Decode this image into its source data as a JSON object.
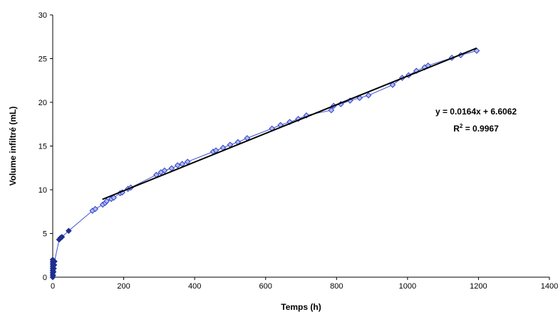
{
  "chart_data": {
    "type": "scatter",
    "xlabel": "Temps (h)",
    "ylabel": "Volume infiltré (mL)",
    "xlim": [
      0,
      1400
    ],
    "ylim": [
      0,
      30
    ],
    "x_ticks": [
      "0",
      "200",
      "400",
      "600",
      "800",
      "1000",
      "1200",
      "1400"
    ],
    "y_ticks": [
      "0",
      "5",
      "10",
      "15",
      "20",
      "25",
      "30"
    ],
    "grid": false,
    "colors": {
      "early_marker": "#1f2f8f",
      "marker_fill": "#aebcff",
      "marker_stroke": "#3040c0",
      "series_line": "#3f4fd0",
      "trendline": "#000000"
    },
    "series": [
      {
        "marker": "diamond",
        "connected": true,
        "x": [
          0,
          0,
          0,
          0,
          0,
          0,
          0,
          0,
          0,
          1,
          2,
          3,
          4,
          5,
          18,
          22,
          26,
          45,
          112,
          120,
          141,
          148,
          152,
          165,
          172,
          190,
          196,
          212,
          220,
          292,
          305,
          315,
          335,
          352,
          365,
          380,
          452,
          460,
          480,
          500,
          522,
          548,
          618,
          642,
          668,
          692,
          715,
          785,
          792,
          812,
          838,
          865,
          890,
          958,
          985,
          1003,
          1025,
          1048,
          1058,
          1125,
          1150,
          1195
        ],
        "y": [
          0,
          0.25,
          0.5,
          0.75,
          1.0,
          1.25,
          1.5,
          1.75,
          2.0,
          0.2,
          0.6,
          1.0,
          1.4,
          1.8,
          4.3,
          4.5,
          4.6,
          5.3,
          7.6,
          7.8,
          8.3,
          8.5,
          8.7,
          8.95,
          9.1,
          9.6,
          9.7,
          10.1,
          10.25,
          11.7,
          12.0,
          12.2,
          12.45,
          12.8,
          12.95,
          13.2,
          14.35,
          14.5,
          14.8,
          15.15,
          15.45,
          15.9,
          17.0,
          17.4,
          17.75,
          18.1,
          18.5,
          19.1,
          19.6,
          19.8,
          20.2,
          20.5,
          20.8,
          22.0,
          22.8,
          23.1,
          23.6,
          24.0,
          24.2,
          25.1,
          25.4,
          25.9
        ]
      }
    ],
    "trendline": {
      "slope": 0.0164,
      "intercept": 6.6062,
      "x_range": [
        140,
        1195
      ]
    },
    "equation_text": "y = 0.0164x + 6.6062",
    "r2_prefix": "R",
    "r2_sup": "2",
    "r2_suffix": " = 0.9967"
  }
}
